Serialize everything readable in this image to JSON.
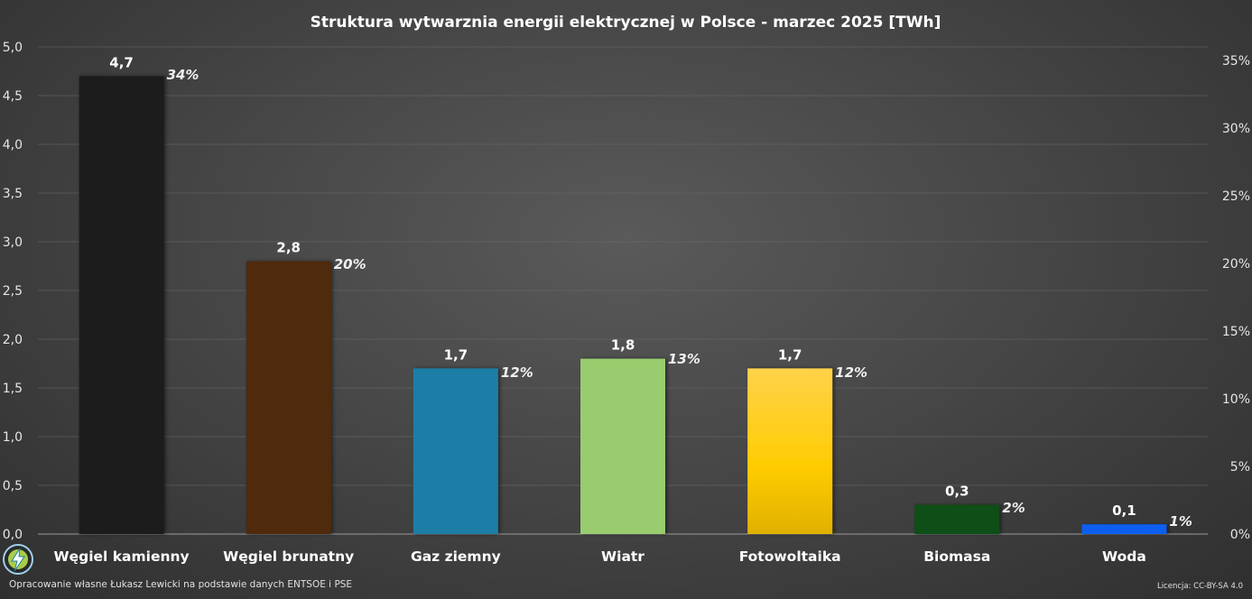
{
  "chart_data": {
    "type": "bar",
    "title": "Struktura wytwarznia energii elektrycznej w Polsce - marzec 2025 [TWh]",
    "categories": [
      "Węgiel kamienny",
      "Węgiel brunatny",
      "Gaz ziemny",
      "Wiatr",
      "Fotowoltaika",
      "Biomasa",
      "Woda"
    ],
    "values": [
      4.7,
      2.8,
      1.7,
      1.8,
      1.7,
      0.3,
      0.1
    ],
    "value_labels": [
      "4,7",
      "2,8",
      "1,7",
      "1,8",
      "1,7",
      "0,3",
      "0,1"
    ],
    "percent_labels": [
      "34%",
      "20%",
      "12%",
      "13%",
      "12%",
      "2%",
      "1%"
    ],
    "percent_values": [
      34,
      20,
      12,
      13,
      12,
      2,
      1
    ],
    "ylim": [
      0,
      5
    ],
    "yticks": [
      "0,0",
      "0,5",
      "1,0",
      "1,5",
      "2,0",
      "2,5",
      "3,0",
      "3,5",
      "4,0",
      "4,5",
      "5,0"
    ],
    "y2lim": [
      0,
      35
    ],
    "y2ticks": [
      "0%",
      "5%",
      "10%",
      "15%",
      "20%",
      "25%",
      "30%",
      "35%"
    ],
    "colors": [
      "#1f1f1f",
      "#4f2a0d",
      "#1c7ea6",
      "#98cc6e",
      "#f5c400",
      "#0a4f14",
      "#0b5ff0"
    ],
    "xlabel": "",
    "ylabel": "",
    "grid": true
  },
  "footer": {
    "source": "Opracowanie własne Łukasz Lewicki na podstawie danych ENTSOE i PSE",
    "license": "Licencja: CC-BY-SA 4.0"
  }
}
